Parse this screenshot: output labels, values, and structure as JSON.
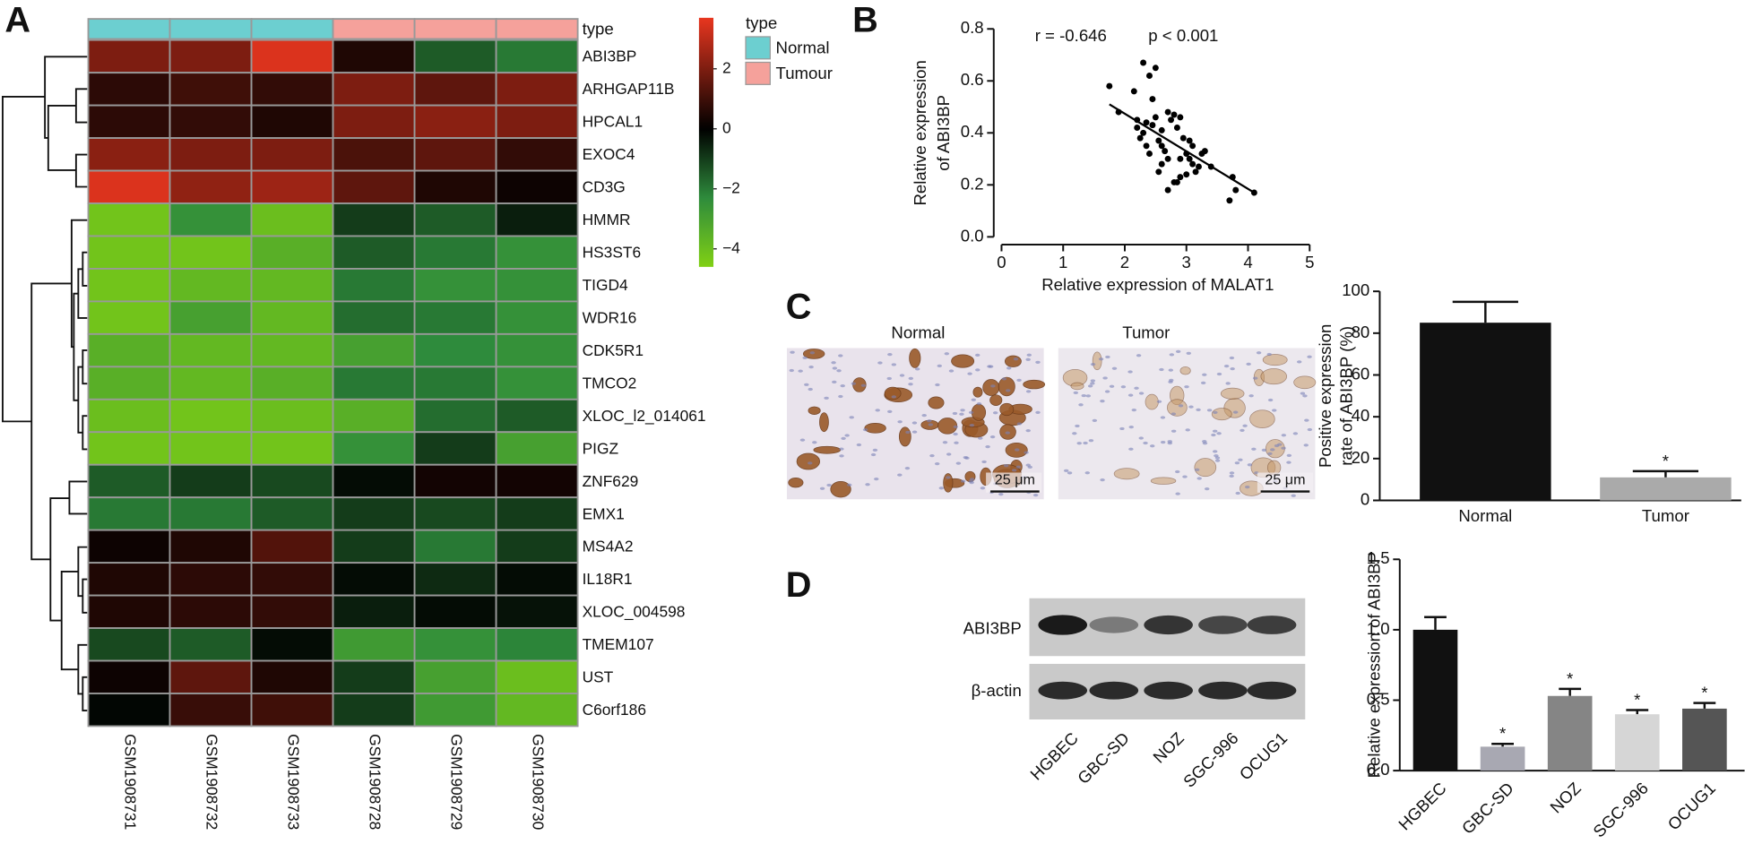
{
  "panels": [
    "A",
    "B",
    "C",
    "D"
  ],
  "micrographs": {
    "labels": [
      "Normal",
      "Tumor"
    ],
    "scale_bar": "25 μm"
  },
  "western_blot": {
    "proteins": [
      "ABI3BP",
      "β-actin"
    ],
    "lanes": [
      "HGBEC",
      "GBC-SD",
      "NOZ",
      "SGC-996",
      "OCUG1"
    ]
  },
  "chart_data": [
    {
      "type": "heatmap",
      "rows": [
        "ABI3BP",
        "ARHGAP11B",
        "HPCAL1",
        "EXOC4",
        "CD3G",
        "HMMR",
        "HS3ST6",
        "TIGD4",
        "WDR16",
        "CDK5R1",
        "TMCO2",
        "XLOC_l2_014061",
        "PIGZ",
        "ZNF629",
        "EMX1",
        "MS4A2",
        "IL18R1",
        "XLOC_004598",
        "TMEM107",
        "UST",
        "C6orf186"
      ],
      "columns": [
        "GSM1908731",
        "GSM1908732",
        "GSM1908733",
        "GSM1908728",
        "GSM1908729",
        "GSM1908730"
      ],
      "values": [
        [
          2,
          2,
          3.5,
          0.5,
          -1.5,
          -2
        ],
        [
          0.7,
          1,
          0.8,
          2,
          1.5,
          2
        ],
        [
          0.7,
          0.8,
          0.5,
          2,
          2.2,
          2
        ],
        [
          2.2,
          2,
          2,
          1.2,
          1.5,
          0.8
        ],
        [
          3.5,
          2.3,
          2.5,
          1.5,
          0.5,
          0.2
        ],
        [
          -4.2,
          -2.5,
          -4,
          -1,
          -1.5,
          -0.5
        ],
        [
          -4.2,
          -4.2,
          -3.5,
          -1.5,
          -2,
          -2.5
        ],
        [
          -4.2,
          -3.8,
          -3.8,
          -2,
          -2.5,
          -2.5
        ],
        [
          -4.2,
          -3,
          -3.8,
          -1.8,
          -2,
          -2.5
        ],
        [
          -3.5,
          -3.8,
          -3.8,
          -3,
          -2.3,
          -2.5
        ],
        [
          -3.5,
          -3.8,
          -3.5,
          -2,
          -2,
          -2.5
        ],
        [
          -4,
          -4.2,
          -4,
          -3.5,
          -1.8,
          -1.5
        ],
        [
          -4.2,
          -4.2,
          -4.2,
          -2.5,
          -1,
          -3
        ],
        [
          -1.5,
          -1,
          -1.2,
          -0.2,
          0.3,
          0.3
        ],
        [
          -2,
          -2,
          -1.5,
          -1,
          -1.2,
          -1
        ],
        [
          0.2,
          0.5,
          1.3,
          -1,
          -2,
          -1
        ],
        [
          0.5,
          0.7,
          0.8,
          -0.2,
          -0.7,
          -0.2
        ],
        [
          0.5,
          0.7,
          0.8,
          -0.5,
          -0.2,
          -0.3
        ],
        [
          -1.2,
          -1.5,
          -0.2,
          -2.8,
          -2.5,
          -2.2
        ],
        [
          0.2,
          1.5,
          0.5,
          -1,
          -3,
          -4
        ],
        [
          -0.1,
          0.9,
          1,
          -1,
          -2.8,
          -3.8
        ]
      ],
      "annotation_label": "type",
      "column_groups": [
        "Normal",
        "Normal",
        "Normal",
        "Tumour",
        "Tumour",
        "Tumour"
      ],
      "legend": {
        "title": "type",
        "entries": [
          {
            "name": "Normal",
            "color": "#6ccfd0"
          },
          {
            "name": "Tumour",
            "color": "#f5a19b"
          }
        ]
      },
      "colorbar": {
        "lim": [
          -4.6,
          3.7
        ],
        "ticks": [
          {
            "value": -4,
            "label": "−4"
          },
          {
            "value": -2,
            "label": "−2"
          },
          0,
          2
        ],
        "colors": [
          "#80d014",
          "#2e8b3c",
          "#000000",
          "#e8361f"
        ]
      }
    },
    {
      "type": "scatter",
      "x": [
        1.75,
        1.9,
        2.15,
        2.3,
        2.4,
        2.45,
        2.5,
        2.2,
        2.25,
        2.3,
        2.35,
        2.4,
        2.45,
        2.5,
        2.55,
        2.6,
        2.6,
        2.65,
        2.7,
        2.75,
        2.8,
        2.85,
        2.9,
        2.95,
        2.7,
        2.6,
        2.55,
        2.7,
        2.8,
        2.9,
        3.0,
        3.05,
        3.1,
        3.1,
        3.15,
        3.2,
        3.25,
        3.3,
        3.05,
        3.0,
        2.9,
        2.85,
        3.4,
        3.75,
        3.8,
        3.7,
        4.1,
        2.35,
        2.2
      ],
      "y": [
        0.58,
        0.48,
        0.56,
        0.67,
        0.62,
        0.53,
        0.65,
        0.42,
        0.38,
        0.4,
        0.35,
        0.32,
        0.43,
        0.46,
        0.37,
        0.41,
        0.35,
        0.33,
        0.48,
        0.45,
        0.47,
        0.42,
        0.46,
        0.38,
        0.3,
        0.28,
        0.25,
        0.18,
        0.21,
        0.3,
        0.32,
        0.37,
        0.35,
        0.28,
        0.25,
        0.27,
        0.32,
        0.33,
        0.3,
        0.24,
        0.23,
        0.21,
        0.27,
        0.23,
        0.18,
        0.14,
        0.17,
        0.44,
        0.45
      ],
      "color": "#000000",
      "fit": {
        "x": [
          1.75,
          4.1
        ],
        "y": [
          0.51,
          0.17
        ]
      },
      "annotations": [
        "r = -0.646",
        "p < 0.001"
      ],
      "xlabel": "Relative expression of MALAT1",
      "ylabel": [
        "Relative expression",
        "of ABI3BP"
      ],
      "xlim": [
        0,
        5
      ],
      "xticks": [
        0,
        1,
        2,
        3,
        4,
        5
      ],
      "ylim": [
        0,
        0.8
      ],
      "yticks": [
        {
          "value": 0,
          "label": "0.0"
        },
        0.2,
        0.4,
        0.6,
        0.8
      ]
    },
    {
      "type": "bar",
      "categories": [
        "Normal",
        "Tumor"
      ],
      "values": [
        85,
        11
      ],
      "errors": [
        10,
        3
      ],
      "colors": [
        "#111111",
        "#aaaaaa"
      ],
      "significance": [
        null,
        "*"
      ],
      "ylabel": [
        "Positive expression",
        "rate of ABI3BP (%)"
      ],
      "ylim": [
        0,
        100
      ],
      "yticks": [
        0,
        20,
        40,
        60,
        80,
        100
      ]
    },
    {
      "type": "bar",
      "categories": [
        "HGBEC",
        "GBC-SD",
        "NOZ",
        "SGC-996",
        "OCUG1"
      ],
      "values": [
        1.0,
        0.17,
        0.53,
        0.4,
        0.44
      ],
      "errors": [
        0.09,
        0.02,
        0.05,
        0.03,
        0.04
      ],
      "colors": [
        "#111111",
        "#a8a8b2",
        "#858585",
        "#d6d6d6",
        "#555555"
      ],
      "significance": [
        null,
        "*",
        "*",
        "*",
        "*"
      ],
      "ylabel": [
        "Relative expression of ABI3BP"
      ],
      "ylim": [
        0,
        1.5
      ],
      "yticks": [
        {
          "value": 0,
          "label": "0.0"
        },
        0.5,
        {
          "value": 1,
          "label": "1.0"
        },
        1.5
      ]
    }
  ]
}
